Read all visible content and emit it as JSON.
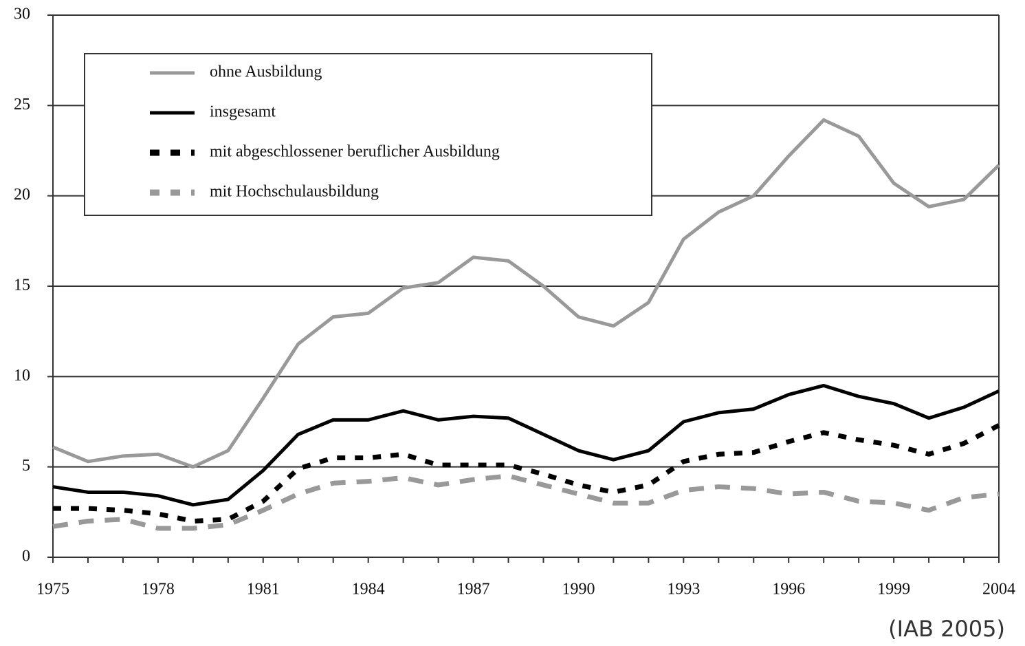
{
  "chart_data": {
    "type": "line",
    "source": "(IAB 2005)",
    "categories": [
      "1975",
      null,
      null,
      "1978",
      null,
      null,
      "1981",
      null,
      null,
      "1984",
      null,
      null,
      "1987",
      null,
      null,
      "1990",
      null,
      null,
      "1993",
      null,
      null,
      "1996",
      null,
      null,
      "1999",
      null,
      null,
      "2004"
    ],
    "series": [
      {
        "name": "ohne Ausbildung",
        "color": "#999999",
        "dash": "solid",
        "values": [
          6.1,
          5.3,
          5.6,
          5.7,
          5.0,
          5.9,
          8.8,
          11.8,
          13.3,
          13.5,
          14.9,
          15.2,
          16.6,
          16.4,
          15.0,
          13.3,
          12.8,
          14.1,
          17.6,
          19.1,
          20.0,
          22.2,
          24.2,
          23.3,
          20.7,
          19.4,
          19.8,
          21.7
        ]
      },
      {
        "name": "insgesamt",
        "color": "#000000",
        "dash": "solid",
        "values": [
          3.9,
          3.6,
          3.6,
          3.4,
          2.9,
          3.2,
          4.8,
          6.8,
          7.6,
          7.6,
          8.1,
          7.6,
          7.8,
          7.7,
          6.8,
          5.9,
          5.4,
          5.9,
          7.5,
          8.0,
          8.2,
          9.0,
          9.5,
          8.9,
          8.5,
          7.7,
          8.3,
          9.2
        ]
      },
      {
        "name": "mit abgeschlossener beruflicher Ausbildung",
        "color": "#000000",
        "dash": "dotted",
        "values": [
          2.7,
          2.7,
          2.6,
          2.4,
          2.0,
          2.1,
          3.1,
          4.9,
          5.5,
          5.5,
          5.7,
          5.1,
          5.1,
          5.1,
          4.6,
          4.0,
          3.6,
          4.0,
          5.3,
          5.7,
          5.8,
          6.4,
          6.9,
          6.5,
          6.2,
          5.7,
          6.3,
          7.3
        ]
      },
      {
        "name": "mit Hochschulausbildung",
        "color": "#999999",
        "dash": "dashed",
        "values": [
          1.7,
          2.0,
          2.1,
          1.6,
          1.6,
          1.8,
          2.6,
          3.5,
          4.1,
          4.2,
          4.4,
          4.0,
          4.3,
          4.5,
          4.0,
          3.5,
          3.0,
          3.0,
          3.7,
          3.9,
          3.8,
          3.5,
          3.6,
          3.1,
          3.0,
          2.6,
          3.3,
          3.5
        ]
      }
    ],
    "ylim": [
      0,
      30
    ],
    "yticks": [
      0,
      5,
      10,
      15,
      20,
      25,
      30
    ],
    "grid": true,
    "legend": "upper left"
  }
}
